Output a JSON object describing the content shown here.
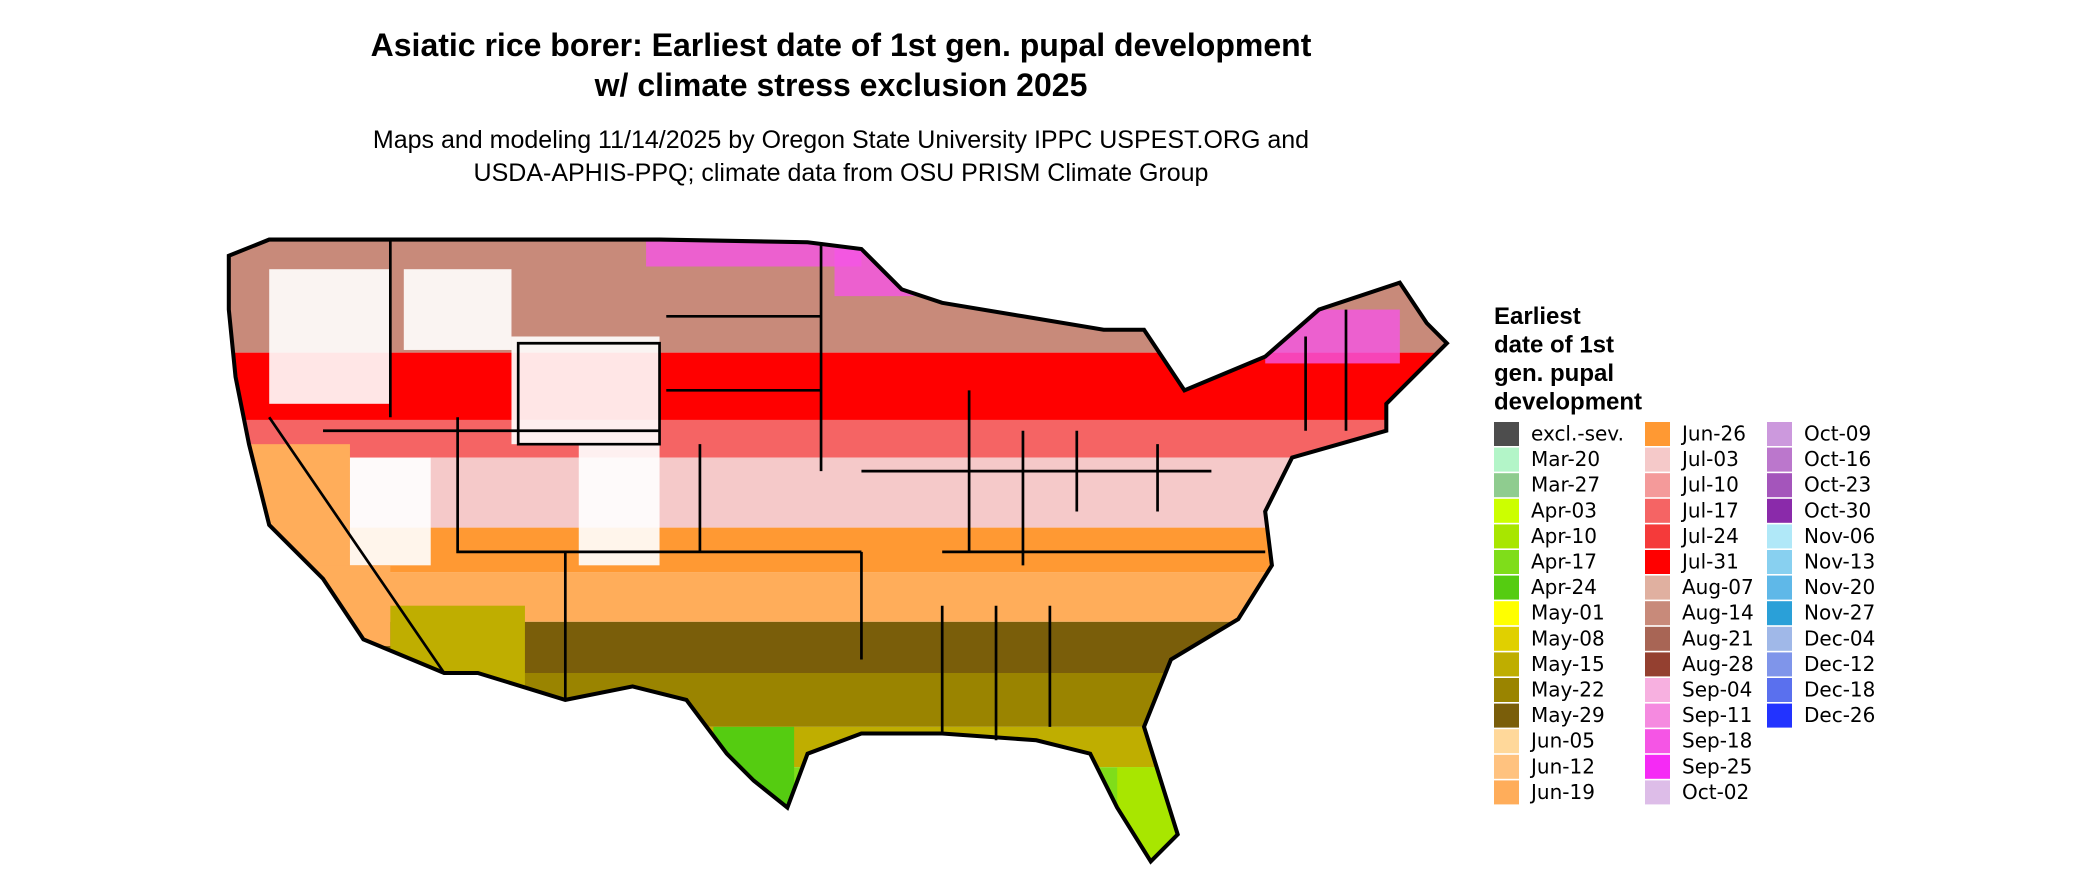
{
  "header": {
    "title_lines": [
      "Asiatic rice borer: Earliest date of 1st gen. pupal development",
      "w/ climate stress exclusion 2025"
    ],
    "subtitle_lines": [
      "Maps and modeling 11/14/2025 by Oregon State University IPPC USPEST.ORG and",
      "USDA-APHIS-PPQ; climate data from OSU PRISM Climate Group"
    ]
  },
  "legend": {
    "title_lines": [
      "Earliest",
      "date of 1st",
      "gen. pupal",
      "development"
    ],
    "items": [
      {
        "label": "excl.-sev.",
        "color": "#4d4d4d"
      },
      {
        "label": "Mar-20",
        "color": "#b3f5c8"
      },
      {
        "label": "Mar-27",
        "color": "#8fcc8f"
      },
      {
        "label": "Apr-03",
        "color": "#ccff00"
      },
      {
        "label": "Apr-10",
        "color": "#a8e600"
      },
      {
        "label": "Apr-17",
        "color": "#7fdd1a"
      },
      {
        "label": "Apr-24",
        "color": "#55cc11"
      },
      {
        "label": "May-01",
        "color": "#ffff00"
      },
      {
        "label": "May-08",
        "color": "#e0d000"
      },
      {
        "label": "May-15",
        "color": "#bfae00"
      },
      {
        "label": "May-22",
        "color": "#9a8400"
      },
      {
        "label": "May-29",
        "color": "#7a5e0a"
      },
      {
        "label": "Jun-05",
        "color": "#ffd89a"
      },
      {
        "label": "Jun-12",
        "color": "#ffc27f"
      },
      {
        "label": "Jun-19",
        "color": "#ffad5a"
      },
      {
        "label": "Jun-26",
        "color": "#ff9933"
      },
      {
        "label": "Jul-03",
        "color": "#f5c9c9"
      },
      {
        "label": "Jul-10",
        "color": "#f49a9a"
      },
      {
        "label": "Jul-17",
        "color": "#f56464"
      },
      {
        "label": "Jul-24",
        "color": "#f53a3a"
      },
      {
        "label": "Jul-31",
        "color": "#ff0000"
      },
      {
        "label": "Aug-07",
        "color": "#e0b0a0"
      },
      {
        "label": "Aug-14",
        "color": "#c88a7a"
      },
      {
        "label": "Aug-21",
        "color": "#a86555"
      },
      {
        "label": "Aug-28",
        "color": "#944030"
      },
      {
        "label": "Sep-04",
        "color": "#f7b0e0"
      },
      {
        "label": "Sep-11",
        "color": "#f58ae0"
      },
      {
        "label": "Sep-18",
        "color": "#f555e5"
      },
      {
        "label": "Sep-25",
        "color": "#f52af5"
      },
      {
        "label": "Oct-02",
        "color": "#ddbde8"
      },
      {
        "label": "Oct-09",
        "color": "#cc99dd"
      },
      {
        "label": "Oct-16",
        "color": "#bb77cc"
      },
      {
        "label": "Oct-23",
        "color": "#a455bb"
      },
      {
        "label": "Oct-30",
        "color": "#8a2aaa"
      },
      {
        "label": "Nov-06",
        "color": "#b0e8f8"
      },
      {
        "label": "Nov-13",
        "color": "#88d0f0"
      },
      {
        "label": "Nov-20",
        "color": "#5fb8e8"
      },
      {
        "label": "Nov-27",
        "color": "#2aa0d8"
      },
      {
        "label": "Dec-04",
        "color": "#a0b8e8"
      },
      {
        "label": "Dec-12",
        "color": "#7f95ea"
      },
      {
        "label": "Dec-18",
        "color": "#5a70ee"
      },
      {
        "label": "Dec-26",
        "color": "#2233ff"
      }
    ]
  }
}
